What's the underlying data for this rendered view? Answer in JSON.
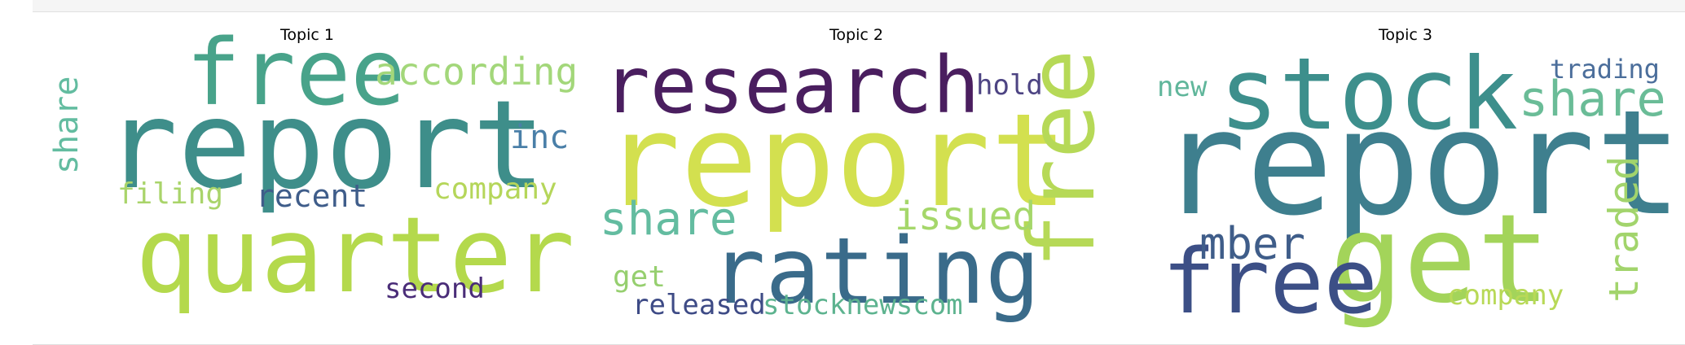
{
  "chart_data": [
    {
      "type": "wordcloud",
      "title": "Topic 1",
      "words": [
        {
          "text": "report",
          "color": "#3e8e8a"
        },
        {
          "text": "quarter",
          "color": "#b4d94c"
        },
        {
          "text": "free",
          "color": "#48a38a"
        },
        {
          "text": "according",
          "color": "#a3d77a"
        },
        {
          "text": "inc",
          "color": "#4a7fa8"
        },
        {
          "text": "share",
          "color": "#63bca0"
        },
        {
          "text": "filing",
          "color": "#a9d46a"
        },
        {
          "text": "recent",
          "color": "#3f5d8a"
        },
        {
          "text": "company",
          "color": "#b5d65a"
        },
        {
          "text": "second",
          "color": "#4a2d78"
        }
      ]
    },
    {
      "type": "wordcloud",
      "title": "Topic 2",
      "words": [
        {
          "text": "report",
          "color": "#d3e04f"
        },
        {
          "text": "research",
          "color": "#4a1e5f"
        },
        {
          "text": "rating",
          "color": "#3a6b8a"
        },
        {
          "text": "free",
          "color": "#b6d957"
        },
        {
          "text": "share",
          "color": "#63bca0"
        },
        {
          "text": "issued",
          "color": "#a5d76a"
        },
        {
          "text": "hold",
          "color": "#4d4483"
        },
        {
          "text": "get",
          "color": "#96cf6f"
        },
        {
          "text": "released",
          "color": "#3e4b86"
        },
        {
          "text": "stocknewscom",
          "color": "#5db38f"
        }
      ]
    },
    {
      "type": "wordcloud",
      "title": "Topic 3",
      "words": [
        {
          "text": "report",
          "color": "#3e7f8e"
        },
        {
          "text": "stock",
          "color": "#3d8f8c"
        },
        {
          "text": "get",
          "color": "#a3d45a"
        },
        {
          "text": "free",
          "color": "#3c4f86"
        },
        {
          "text": "share",
          "color": "#6abc97"
        },
        {
          "text": "mber",
          "color": "#3f5d89"
        },
        {
          "text": "traded",
          "color": "#a2d46c"
        },
        {
          "text": "new",
          "color": "#60b69b"
        },
        {
          "text": "trading",
          "color": "#4b6e9b"
        },
        {
          "text": "company",
          "color": "#b8d957"
        }
      ]
    }
  ]
}
